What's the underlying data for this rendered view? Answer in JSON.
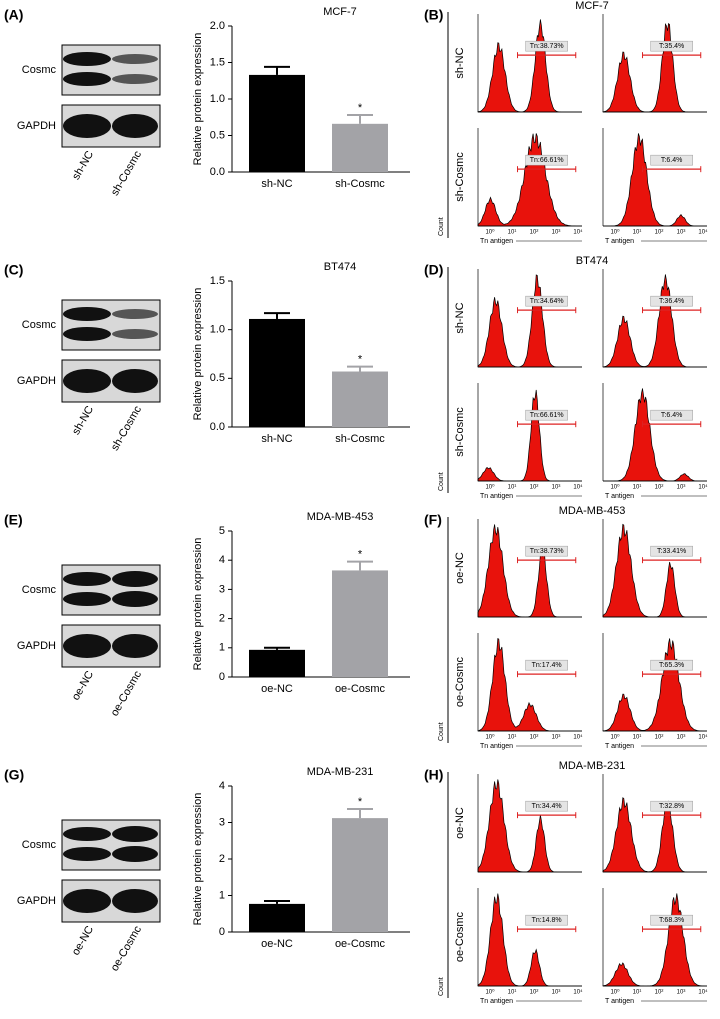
{
  "chart_data": [
    {
      "type": "bar",
      "title": "MCF-7",
      "y_label": "Relative protein expression",
      "categories": [
        "sh-NC",
        "sh-Cosmc"
      ],
      "values": [
        1.33,
        0.66
      ],
      "errors": [
        0.11,
        0.12
      ],
      "colors": [
        "#000000",
        "#a3a3a7"
      ],
      "ylim": [
        0,
        2
      ],
      "yticks": [
        {
          "value": 0,
          "label": "0.0"
        },
        {
          "value": 0.5,
          "label": "0.5"
        },
        {
          "value": 1,
          "label": "1.0"
        },
        {
          "value": 1.5,
          "label": "1.5"
        },
        {
          "value": 2,
          "label": "2.0"
        }
      ],
      "annotations": [
        {
          "category": "sh-Cosmc",
          "text": "*"
        }
      ]
    },
    {
      "type": "bar",
      "title": "BT474",
      "y_label": "Relative protein expression",
      "categories": [
        "sh-NC",
        "sh-Cosmc"
      ],
      "values": [
        1.11,
        0.57
      ],
      "errors": [
        0.06,
        0.05
      ],
      "colors": [
        "#000000",
        "#a3a3a7"
      ],
      "ylim": [
        0,
        1.5
      ],
      "yticks": [
        {
          "value": 0,
          "label": "0.0"
        },
        {
          "value": 0.5,
          "label": "0.5"
        },
        {
          "value": 1,
          "label": "1.0"
        },
        {
          "value": 1.5,
          "label": "1.5"
        }
      ],
      "annotations": [
        {
          "category": "sh-Cosmc",
          "text": "*"
        }
      ]
    },
    {
      "type": "bar",
      "title": "MDA-MB-453",
      "y_label": "Relative protein expression",
      "categories": [
        "oe-NC",
        "oe-Cosmc"
      ],
      "values": [
        0.93,
        3.65
      ],
      "errors": [
        0.07,
        0.3
      ],
      "colors": [
        "#000000",
        "#a3a3a7"
      ],
      "ylim": [
        0,
        5
      ],
      "yticks": [
        0,
        1,
        2,
        3,
        4,
        5
      ],
      "annotations": [
        {
          "category": "oe-Cosmc",
          "text": "*"
        }
      ]
    },
    {
      "type": "bar",
      "title": "MDA-MB-231",
      "y_label": "Relative protein expression",
      "categories": [
        "oe-NC",
        "oe-Cosmc"
      ],
      "values": [
        0.77,
        3.12
      ],
      "errors": [
        0.08,
        0.25
      ],
      "colors": [
        "#000000",
        "#a3a3a7"
      ],
      "ylim": [
        0,
        4
      ],
      "yticks": [
        0,
        1,
        2,
        3,
        4
      ],
      "annotations": [
        {
          "category": "oe-Cosmc",
          "text": "*"
        }
      ]
    }
  ],
  "blots": [
    {
      "letter": "(A)",
      "bands": [
        "Cosmc",
        "GAPDH"
      ],
      "lanes": [
        "sh-NC",
        "sh-Cosmc"
      ]
    },
    {
      "letter": "(C)",
      "bands": [
        "Cosmc",
        "GAPDH"
      ],
      "lanes": [
        "sh-NC",
        "sh-Cosmc"
      ]
    },
    {
      "letter": "(E)",
      "bands": [
        "Cosmc",
        "GAPDH"
      ],
      "lanes": [
        "oe-NC",
        "oe-Cosmc"
      ]
    },
    {
      "letter": "(G)",
      "bands": [
        "Cosmc",
        "GAPDH"
      ],
      "lanes": [
        "oe-NC",
        "oe-Cosmc"
      ]
    }
  ],
  "flow": [
    {
      "letter": "(B)",
      "title": "MCF-7",
      "rows": [
        "sh-NC",
        "sh-Cosmc"
      ],
      "gates": [
        [
          "Tn:38.73%",
          "T:35.4%"
        ],
        [
          "Tn:66.61%",
          "T:6.4%"
        ]
      ]
    },
    {
      "letter": "(D)",
      "title": "BT474",
      "rows": [
        "sh-NC",
        "sh-Cosmc"
      ],
      "gates": [
        [
          "Tn:34.64%",
          "T:36.4%"
        ],
        [
          "Tn:66.61%",
          "T:6.4%"
        ]
      ]
    },
    {
      "letter": "(F)",
      "title": "MDA-MB-453",
      "rows": [
        "oe-NC",
        "oe-Cosmc"
      ],
      "gates": [
        [
          "Tn:38.73%",
          "T:33.41%"
        ],
        [
          "Tn:17.4%",
          "T:65.3%"
        ]
      ]
    },
    {
      "letter": "(H)",
      "title": "MDA-MB-231",
      "rows": [
        "oe-NC",
        "oe-Cosmc"
      ],
      "gates": [
        [
          "Tn:34.4%",
          "T:32.8%"
        ],
        [
          "Tn:14.8%",
          "T:68.3%"
        ]
      ]
    }
  ],
  "flow_x_labels": [
    "Tn antigen",
    "T antigen"
  ],
  "flow_y_label": "Count",
  "flow_xticks": [
    "10⁰",
    "10¹",
    "10²",
    "10³",
    "10⁴"
  ]
}
